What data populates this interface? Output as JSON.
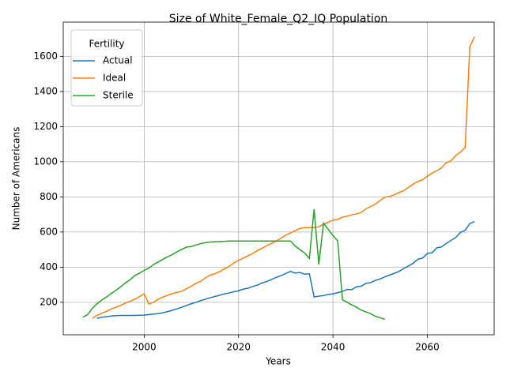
{
  "chart_data": {
    "type": "line",
    "title": "Size of White_Female_Q2_IQ Population",
    "x_label": "Years",
    "y_label": "Number of Americans",
    "legend_title": "Fertility",
    "legend": "upper left",
    "grid": true,
    "x": [
      1987,
      1988,
      1989,
      1990,
      1991,
      1992,
      1993,
      1994,
      1995,
      1996,
      1997,
      1998,
      1999,
      2000,
      2001,
      2002,
      2003,
      2004,
      2005,
      2006,
      2007,
      2008,
      2009,
      2010,
      2011,
      2012,
      2013,
      2014,
      2015,
      2016,
      2017,
      2018,
      2019,
      2020,
      2021,
      2022,
      2023,
      2024,
      2025,
      2026,
      2027,
      2028,
      2029,
      2030,
      2031,
      2032,
      2033,
      2034,
      2035,
      2036,
      2037,
      2038,
      2039,
      2040,
      2041,
      2042,
      2043,
      2044,
      2045,
      2046,
      2047,
      2048,
      2049,
      2050,
      2051,
      2052,
      2053,
      2054,
      2055,
      2056,
      2057,
      2058,
      2059,
      2060,
      2061,
      2062,
      2063,
      2064,
      2065,
      2066,
      2067,
      2068,
      2069,
      2070
    ],
    "series": [
      {
        "name": "Actual",
        "color": "#1f77b4",
        "values": [
          null,
          null,
          null,
          108,
          115,
          118,
          122,
          124,
          125,
          125,
          125,
          125,
          126,
          127,
          130,
          133,
          136,
          141,
          147,
          155,
          163,
          172,
          182,
          192,
          200,
          210,
          218,
          226,
          233,
          240,
          248,
          253,
          260,
          265,
          275,
          280,
          290,
          298,
          310,
          318,
          330,
          342,
          352,
          364,
          376,
          366,
          370,
          360,
          362,
          230,
          235,
          238,
          245,
          248,
          255,
          262,
          273,
          272,
          288,
          292,
          308,
          312,
          325,
          333,
          345,
          355,
          365,
          376,
          392,
          407,
          422,
          445,
          452,
          478,
          482,
          510,
          515,
          535,
          552,
          568,
          598,
          610,
          648,
          660
        ]
      },
      {
        "name": "Ideal",
        "color": "#ff7f0e",
        "values": [
          null,
          null,
          110,
          125,
          138,
          148,
          162,
          172,
          182,
          195,
          205,
          218,
          232,
          248,
          190,
          200,
          218,
          230,
          240,
          250,
          257,
          263,
          278,
          292,
          308,
          320,
          340,
          355,
          363,
          375,
          390,
          405,
          424,
          438,
          452,
          465,
          478,
          495,
          508,
          522,
          535,
          550,
          565,
          582,
          595,
          608,
          620,
          625,
          625,
          625,
          630,
          645,
          655,
          668,
          672,
          685,
          690,
          698,
          703,
          712,
          732,
          745,
          760,
          780,
          798,
          803,
          812,
          825,
          835,
          855,
          873,
          888,
          898,
          918,
          935,
          950,
          965,
          995,
          1005,
          1035,
          1055,
          1080,
          1655,
          1712
        ]
      },
      {
        "name": "Sterile",
        "color": "#2ca02c",
        "values": [
          115,
          130,
          165,
          192,
          212,
          230,
          250,
          268,
          288,
          310,
          328,
          352,
          366,
          382,
          395,
          415,
          430,
          445,
          460,
          472,
          488,
          502,
          514,
          518,
          526,
          534,
          540,
          543,
          545,
          546,
          547,
          549,
          549,
          549,
          549,
          549,
          549,
          549,
          549,
          549,
          549,
          549,
          549,
          549,
          549,
          520,
          500,
          480,
          450,
          730,
          415,
          650,
          615,
          580,
          550,
          215,
          200,
          185,
          172,
          155,
          145,
          135,
          120,
          112,
          103,
          null,
          null,
          null,
          null,
          null,
          null,
          null,
          null,
          null,
          null,
          null,
          null,
          null,
          null,
          null,
          null,
          null,
          null,
          null
        ]
      }
    ],
    "xlim": [
      1982.85,
      2074.15
    ],
    "xticks": [
      2000,
      2020,
      2040,
      2060
    ],
    "ylim": [
      15,
      1795
    ],
    "yticks": [
      200,
      400,
      600,
      800,
      1000,
      1200,
      1400,
      1600
    ]
  }
}
